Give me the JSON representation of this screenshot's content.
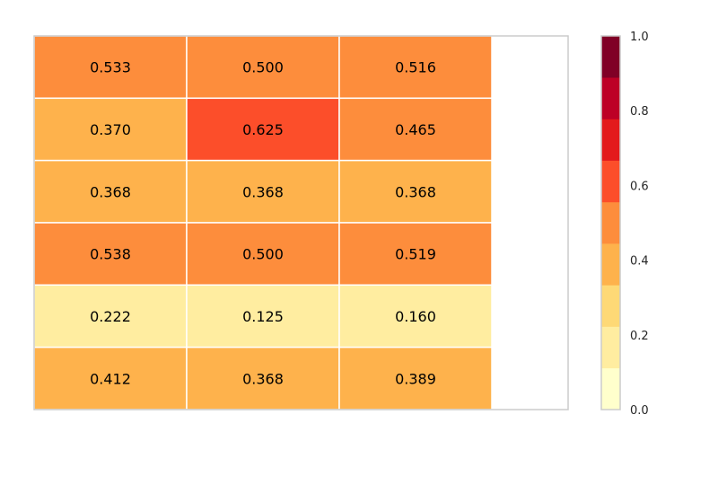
{
  "chart_data": {
    "type": "heatmap",
    "rows": 6,
    "columns": 3,
    "values": [
      [
        0.533,
        0.5,
        0.516
      ],
      [
        0.37,
        0.625,
        0.465
      ],
      [
        0.368,
        0.368,
        0.368
      ],
      [
        0.538,
        0.5,
        0.519
      ],
      [
        0.222,
        0.125,
        0.16
      ],
      [
        0.412,
        0.368,
        0.389
      ]
    ],
    "cell_labels": [
      [
        "0.533",
        "0.500",
        "0.516"
      ],
      [
        "0.370",
        "0.625",
        "0.465"
      ],
      [
        "0.368",
        "0.368",
        "0.368"
      ],
      [
        "0.538",
        "0.500",
        "0.519"
      ],
      [
        "0.222",
        "0.125",
        "0.160"
      ],
      [
        "0.412",
        "0.368",
        "0.389"
      ]
    ],
    "colorbar": {
      "range": [
        0.0,
        1.0
      ],
      "ticks": [
        0.0,
        0.2,
        0.4,
        0.6,
        0.8,
        1.0
      ],
      "tick_labels": [
        "0.0",
        "0.2",
        "0.4",
        "0.6",
        "0.8",
        "1.0"
      ],
      "colors": [
        "#ffffcc",
        "#ffeda0",
        "#fed976",
        "#feb24c",
        "#fd8d3c",
        "#fc4e2a",
        "#e31a1c",
        "#bd0026",
        "#800026"
      ]
    },
    "colormap": "YlOrRd",
    "grid": false
  }
}
